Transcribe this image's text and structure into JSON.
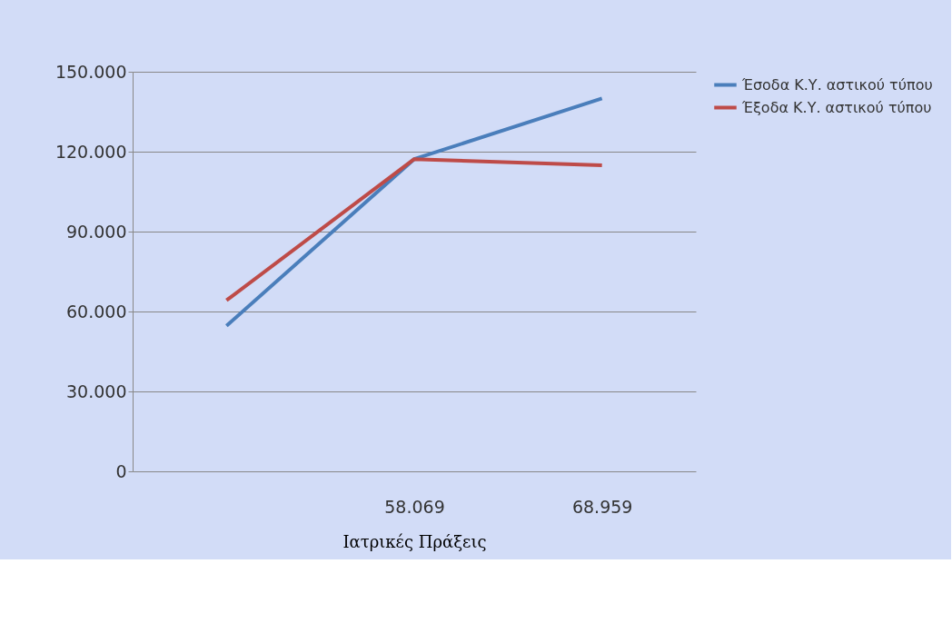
{
  "chart_data": {
    "type": "line",
    "xlabel": "Ιατρικές  Πράξεις",
    "categories": [
      null,
      "58.069",
      "68.959"
    ],
    "series": [
      {
        "name": "Έσοδα Κ.Υ. αστικού τύπου",
        "color": "#4a7ebb",
        "values": [
          54600,
          117200,
          140000
        ]
      },
      {
        "name": "Έξοδα Κ.Υ. αστικού τύπου",
        "color": "#be4b48",
        "values": [
          64200,
          117200,
          114900
        ]
      }
    ],
    "ylim": [
      0,
      150000
    ],
    "yticks": [
      {
        "value": 0,
        "label": "0"
      },
      {
        "value": 30000,
        "label": "30.000"
      },
      {
        "value": 60000,
        "label": "60.000"
      },
      {
        "value": 90000,
        "label": "90.000"
      },
      {
        "value": 120000,
        "label": "120.000"
      },
      {
        "value": 150000,
        "label": "150.000"
      }
    ],
    "grid": "y",
    "legend": "right",
    "marker": "none",
    "line_style": "solid"
  }
}
